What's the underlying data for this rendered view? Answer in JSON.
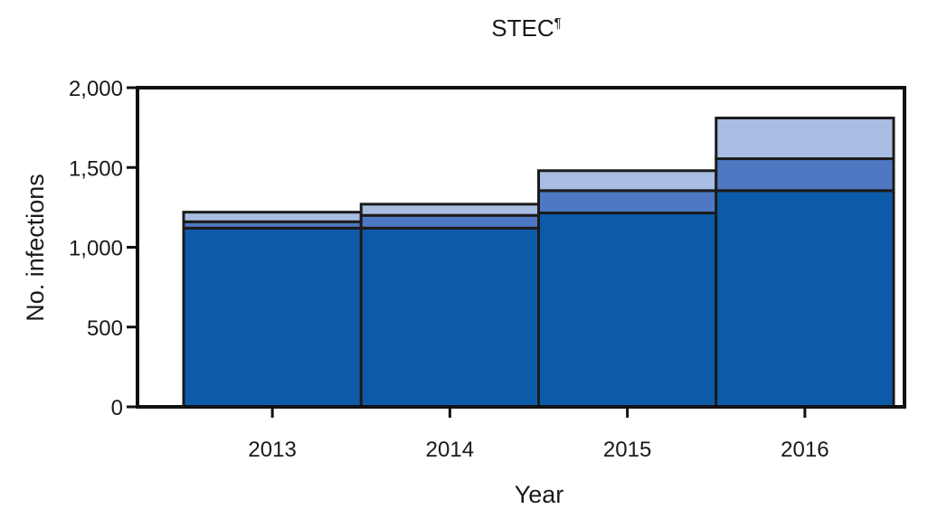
{
  "chart_data": {
    "type": "bar",
    "title": "STEC",
    "title_superscript": "¶",
    "xlabel": "Year",
    "ylabel": "No. infections",
    "categories": [
      "2013",
      "2014",
      "2015",
      "2016"
    ],
    "ylim": [
      0,
      2000
    ],
    "yticks": [
      0,
      500,
      1000,
      1500,
      2000
    ],
    "ytick_labels": [
      "0",
      "500",
      "1,000",
      "1,500",
      "2,000"
    ],
    "stacked": true,
    "grid": false,
    "series": [
      {
        "values": [
          1120,
          1120,
          1215,
          1355
        ],
        "color": "#0d5ba8"
      },
      {
        "values": [
          40,
          80,
          140,
          200
        ],
        "color": "#4f78c2"
      },
      {
        "values": [
          60,
          70,
          125,
          255
        ],
        "color": "#a9bde2"
      }
    ],
    "totals": [
      1220,
      1270,
      1480,
      1810
    ]
  }
}
